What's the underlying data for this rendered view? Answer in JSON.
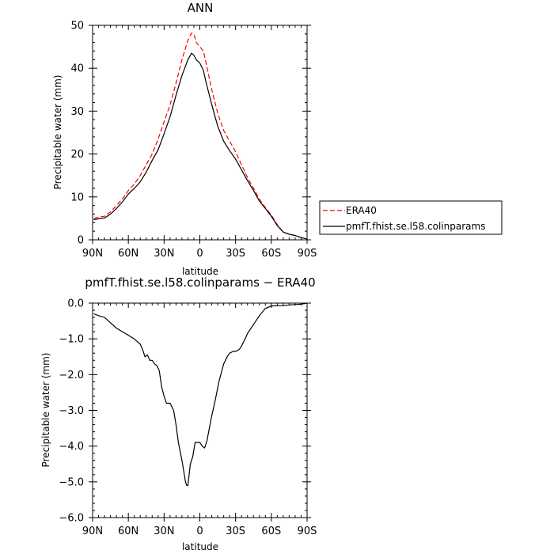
{
  "chart_data": [
    {
      "type": "line",
      "title": "ANN",
      "xlabel": "latitude",
      "ylabel": "Precipitable water (mm)",
      "xlim": [
        90,
        -90
      ],
      "ylim": [
        0,
        50
      ],
      "x_ticks": [
        90,
        60,
        30,
        0,
        -30,
        -60,
        -90
      ],
      "x_tick_labels": [
        "90N",
        "60N",
        "30N",
        "0",
        "30S",
        "60S",
        "90S"
      ],
      "y_ticks": [
        0,
        10,
        20,
        30,
        40,
        50
      ],
      "y_tick_labels": [
        "0",
        "10",
        "20",
        "30",
        "40",
        "50"
      ],
      "legend_position": "right",
      "series": [
        {
          "name": "ERA40",
          "color": "#ff0000",
          "dash": "dashed",
          "x": [
            89,
            85,
            80,
            75,
            70,
            65,
            60,
            55,
            50,
            45,
            40,
            35,
            30,
            25,
            20,
            15,
            10,
            7,
            5,
            3,
            0,
            -3,
            -5,
            -10,
            -15,
            -20,
            -25,
            -30,
            -35,
            -40,
            -45,
            -50,
            -55,
            -60,
            -65,
            -70,
            -75,
            -80,
            -85,
            -90
          ],
          "y": [
            5.0,
            5.3,
            5.5,
            6.5,
            8.0,
            9.5,
            11.5,
            13.0,
            15.0,
            17.5,
            20.0,
            23.5,
            27.5,
            31.5,
            36.5,
            42.0,
            46.5,
            48.2,
            48.0,
            46.0,
            45.0,
            44.0,
            41.5,
            35.0,
            29.5,
            25.5,
            23.0,
            20.5,
            17.5,
            14.5,
            12.0,
            9.5,
            7.5,
            5.8,
            3.5,
            1.8,
            1.3,
            1.0,
            0.5,
            0.2
          ]
        },
        {
          "name": "pmfT.fhist.se.l58.colinparams",
          "color": "#000000",
          "dash": "solid",
          "x": [
            89,
            85,
            80,
            75,
            70,
            65,
            60,
            55,
            50,
            45,
            40,
            35,
            30,
            25,
            20,
            15,
            10,
            7,
            5,
            3,
            0,
            -3,
            -5,
            -10,
            -15,
            -20,
            -25,
            -30,
            -35,
            -40,
            -45,
            -50,
            -55,
            -60,
            -65,
            -70,
            -75,
            -80,
            -85,
            -90
          ],
          "y": [
            4.7,
            4.9,
            5.1,
            6.0,
            7.3,
            8.8,
            10.7,
            12.0,
            13.5,
            15.8,
            18.5,
            21.0,
            24.7,
            28.7,
            33.7,
            38.3,
            42.0,
            43.5,
            43.0,
            42.0,
            41.2,
            39.5,
            37.0,
            31.5,
            26.5,
            23.0,
            20.8,
            18.8,
            16.3,
            13.8,
            11.5,
            9.0,
            7.3,
            5.5,
            3.3,
            1.8,
            1.3,
            1.0,
            0.5,
            0.2
          ]
        }
      ]
    },
    {
      "type": "line",
      "title": "pmfT.fhist.se.l58.colinparams − ERA40",
      "xlabel": "latitude",
      "ylabel": "Precipitable water (mm)",
      "xlim": [
        90,
        -90
      ],
      "ylim": [
        -6.0,
        0.0
      ],
      "x_ticks": [
        90,
        60,
        30,
        0,
        -30,
        -60,
        -90
      ],
      "x_tick_labels": [
        "90N",
        "60N",
        "30N",
        "0",
        "30S",
        "60S",
        "90S"
      ],
      "y_ticks": [
        0.0,
        -1.0,
        -2.0,
        -3.0,
        -4.0,
        -5.0,
        -6.0
      ],
      "y_tick_labels": [
        "0.0",
        "−1.0",
        "−2.0",
        "−3.0",
        "−4.0",
        "−5.0",
        "−6.0"
      ],
      "series": [
        {
          "color": "#000000",
          "dash": "solid",
          "x": [
            89,
            85,
            80,
            75,
            70,
            65,
            60,
            55,
            50,
            48,
            46,
            44,
            42,
            40,
            38,
            36,
            34,
            32,
            30,
            28,
            25,
            22,
            20,
            18,
            15,
            13,
            12,
            11,
            10,
            8,
            6,
            4,
            2,
            0,
            -2,
            -4,
            -6,
            -8,
            -10,
            -13,
            -16,
            -20,
            -23,
            -25,
            -28,
            -30,
            -33,
            -35,
            -38,
            -40,
            -45,
            -50,
            -55,
            -60,
            -65,
            -70,
            -75,
            -80,
            -85,
            -90
          ],
          "y": [
            -0.3,
            -0.35,
            -0.4,
            -0.55,
            -0.7,
            -0.8,
            -0.9,
            -1.0,
            -1.15,
            -1.3,
            -1.5,
            -1.45,
            -1.6,
            -1.6,
            -1.7,
            -1.75,
            -1.9,
            -2.35,
            -2.6,
            -2.8,
            -2.8,
            -3.0,
            -3.4,
            -3.9,
            -4.4,
            -4.8,
            -5.0,
            -5.1,
            -5.1,
            -4.5,
            -4.3,
            -3.9,
            -3.9,
            -3.9,
            -4.0,
            -4.05,
            -3.85,
            -3.5,
            -3.15,
            -2.7,
            -2.2,
            -1.7,
            -1.5,
            -1.4,
            -1.35,
            -1.35,
            -1.3,
            -1.2,
            -1.0,
            -0.85,
            -0.6,
            -0.35,
            -0.15,
            -0.08,
            -0.07,
            -0.07,
            -0.05,
            -0.04,
            -0.03,
            0.0
          ]
        }
      ]
    }
  ]
}
